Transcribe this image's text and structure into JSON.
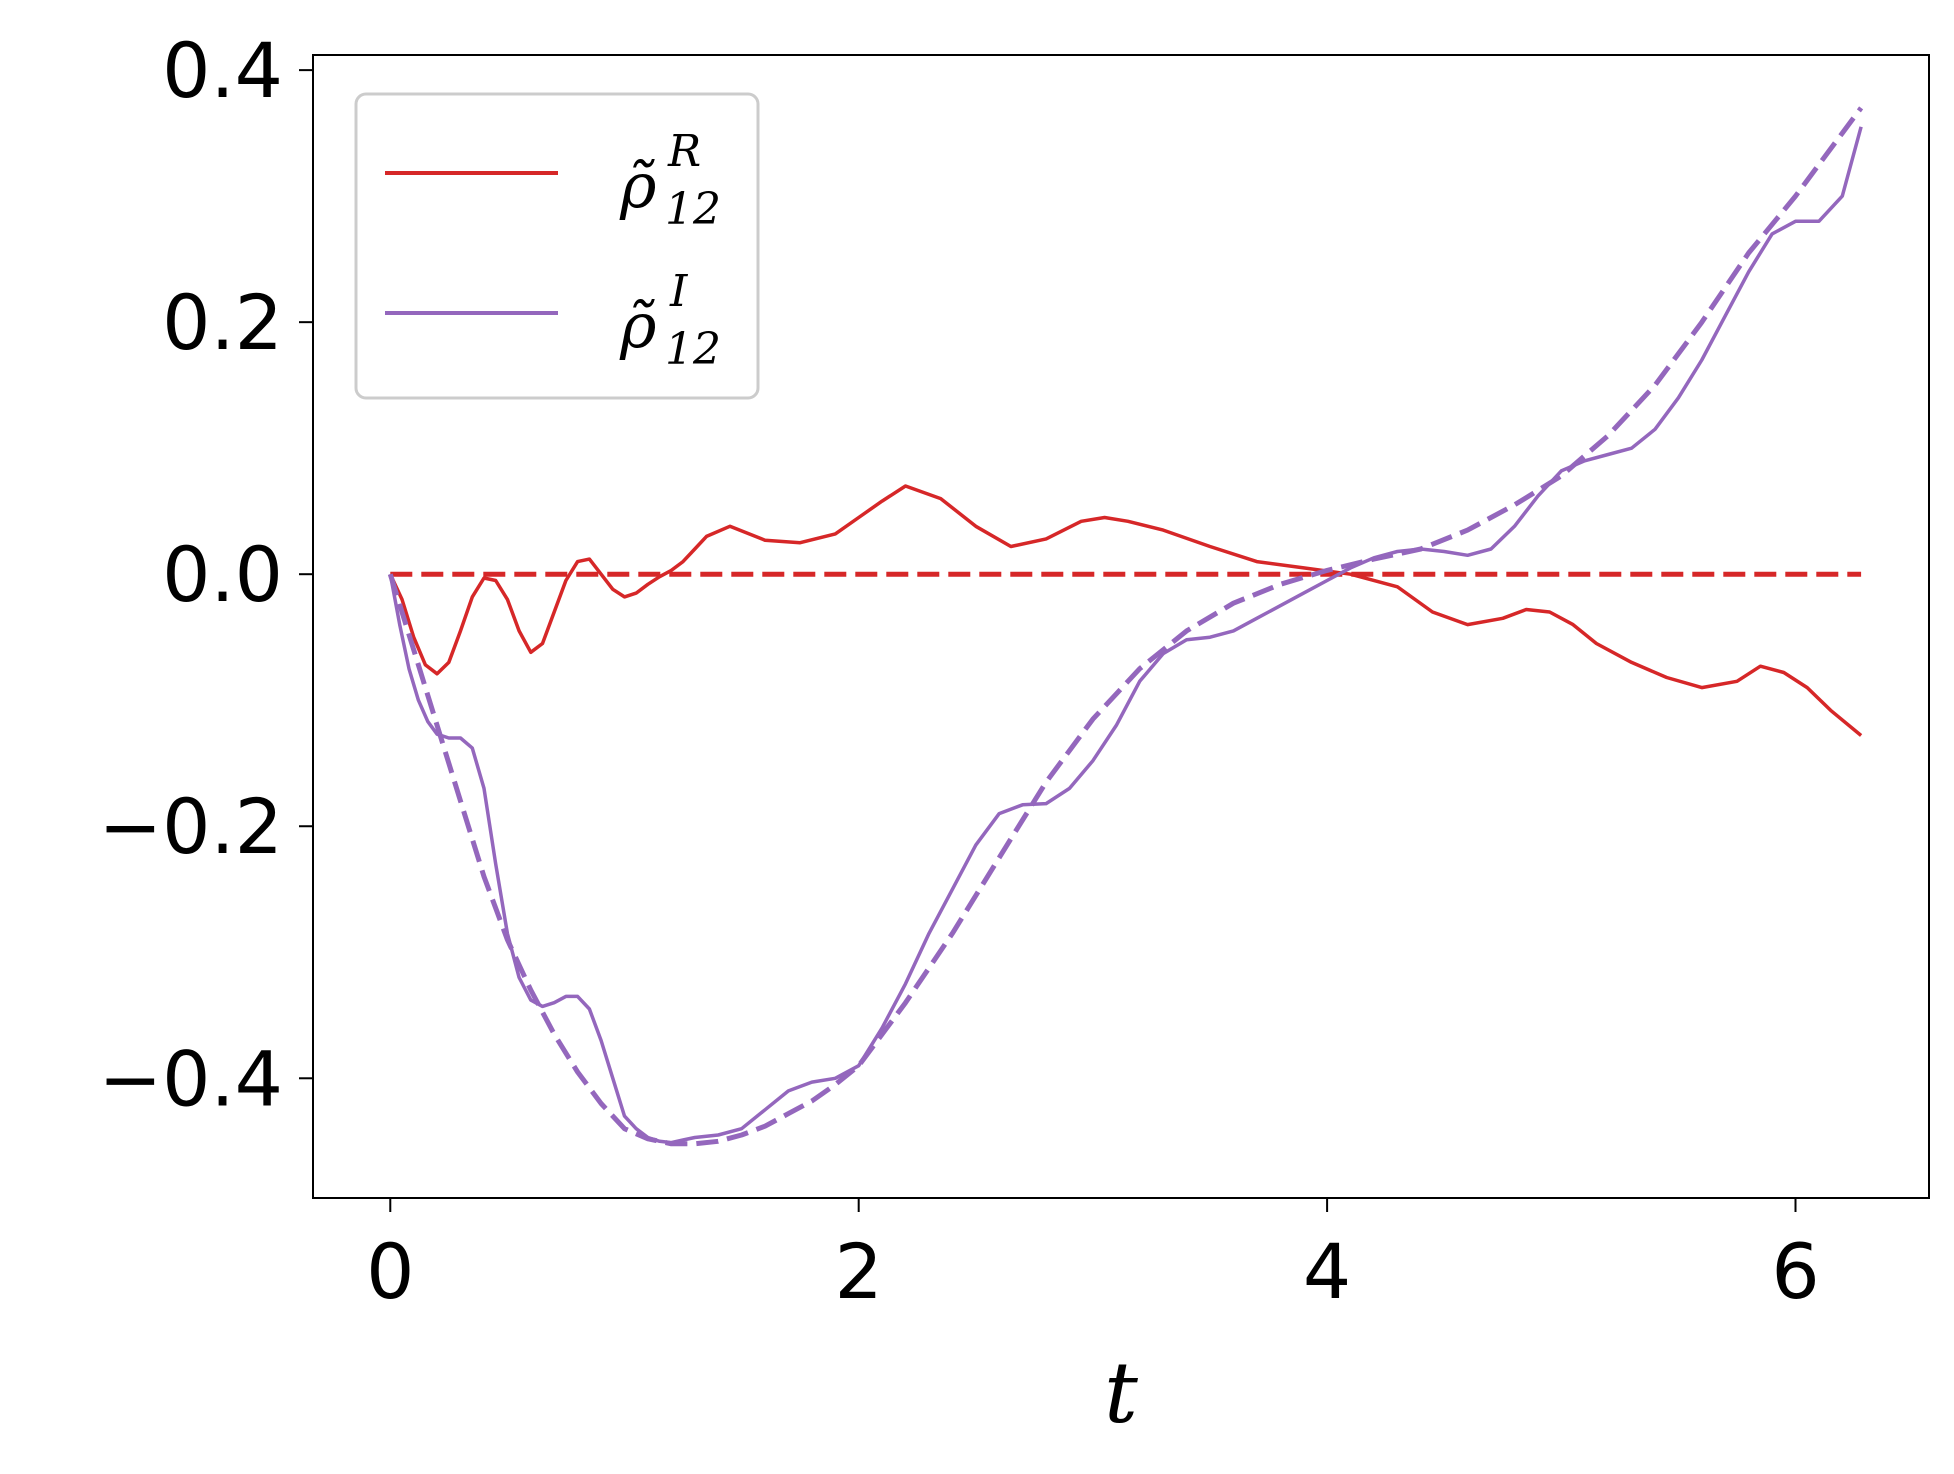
{
  "chart_data": {
    "type": "line",
    "xlabel": "t",
    "ylabel": "",
    "xlim": [
      -0.33,
      6.57
    ],
    "ylim": [
      -0.495,
      0.412
    ],
    "xticks": [
      0,
      2,
      4,
      6
    ],
    "yticks": [
      -0.4,
      -0.2,
      0.0,
      0.2,
      0.4
    ],
    "xtick_labels": [
      "0",
      "2",
      "4",
      "6"
    ],
    "ytick_labels": [
      "−0.4",
      "−0.2",
      "0.0",
      "0.2",
      "0.4"
    ],
    "grid": false,
    "legend_position": "top-left",
    "legend": [
      {
        "symbol": "ρ̃",
        "sub": "12",
        "sup": "R",
        "color": "#d62728"
      },
      {
        "symbol": "ρ̃",
        "sub": "12",
        "sup": "I",
        "color": "#9467bd"
      }
    ],
    "series": [
      {
        "color": "#d62728",
        "style": "solid",
        "x": [
          0,
          0.05,
          0.1,
          0.15,
          0.2,
          0.25,
          0.3,
          0.35,
          0.4,
          0.45,
          0.5,
          0.55,
          0.6,
          0.65,
          0.7,
          0.75,
          0.8,
          0.85,
          0.9,
          0.95,
          1.0,
          1.05,
          1.1,
          1.15,
          1.2,
          1.25,
          1.3,
          1.35,
          1.45,
          1.6,
          1.75,
          1.9,
          2.0,
          2.1,
          2.2,
          2.35,
          2.5,
          2.65,
          2.8,
          2.95,
          3.05,
          3.15,
          3.3,
          3.5,
          3.7,
          3.9,
          4.1,
          4.3,
          4.45,
          4.6,
          4.75,
          4.85,
          4.95,
          5.05,
          5.15,
          5.3,
          5.45,
          5.6,
          5.75,
          5.85,
          5.95,
          6.05,
          6.15,
          6.28
        ],
        "y": [
          0.0,
          -0.02,
          -0.05,
          -0.072,
          -0.079,
          -0.07,
          -0.045,
          -0.018,
          -0.003,
          -0.005,
          -0.02,
          -0.045,
          -0.062,
          -0.055,
          -0.03,
          -0.005,
          0.01,
          0.012,
          0.0,
          -0.012,
          -0.018,
          -0.015,
          -0.008,
          -0.002,
          0.003,
          0.01,
          0.02,
          0.03,
          0.038,
          0.027,
          0.025,
          0.032,
          0.045,
          0.058,
          0.07,
          0.06,
          0.038,
          0.022,
          0.028,
          0.042,
          0.045,
          0.042,
          0.035,
          0.022,
          0.01,
          0.005,
          0.0,
          -0.01,
          -0.03,
          -0.04,
          -0.035,
          -0.028,
          -0.03,
          -0.04,
          -0.055,
          -0.07,
          -0.082,
          -0.09,
          -0.085,
          -0.073,
          -0.078,
          -0.09,
          -0.108,
          -0.128
        ]
      },
      {
        "color": "#d62728",
        "style": "dashed",
        "x": [
          0,
          6.28
        ],
        "y": [
          0.0,
          0.0
        ]
      },
      {
        "color": "#9467bd",
        "style": "solid",
        "x": [
          0,
          0.04,
          0.08,
          0.12,
          0.16,
          0.2,
          0.25,
          0.3,
          0.35,
          0.4,
          0.45,
          0.5,
          0.55,
          0.6,
          0.65,
          0.7,
          0.75,
          0.8,
          0.85,
          0.9,
          0.95,
          1.0,
          1.05,
          1.1,
          1.15,
          1.2,
          1.25,
          1.3,
          1.35,
          1.4,
          1.5,
          1.6,
          1.7,
          1.8,
          1.9,
          2.0,
          2.1,
          2.2,
          2.3,
          2.4,
          2.5,
          2.6,
          2.7,
          2.8,
          2.9,
          3.0,
          3.1,
          3.2,
          3.3,
          3.4,
          3.5,
          3.6,
          3.7,
          3.8,
          3.9,
          4.0,
          4.1,
          4.2,
          4.3,
          4.4,
          4.5,
          4.6,
          4.7,
          4.8,
          4.9,
          5.0,
          5.1,
          5.2,
          5.3,
          5.4,
          5.5,
          5.6,
          5.7,
          5.8,
          5.9,
          6.0,
          6.1,
          6.2,
          6.28
        ],
        "y": [
          0.0,
          -0.04,
          -0.075,
          -0.1,
          -0.117,
          -0.127,
          -0.13,
          -0.13,
          -0.138,
          -0.17,
          -0.23,
          -0.285,
          -0.32,
          -0.338,
          -0.343,
          -0.34,
          -0.335,
          -0.335,
          -0.345,
          -0.37,
          -0.4,
          -0.43,
          -0.44,
          -0.447,
          -0.45,
          -0.451,
          -0.449,
          -0.447,
          -0.446,
          -0.445,
          -0.44,
          -0.425,
          -0.41,
          -0.403,
          -0.4,
          -0.39,
          -0.36,
          -0.325,
          -0.285,
          -0.25,
          -0.215,
          -0.19,
          -0.183,
          -0.182,
          -0.17,
          -0.148,
          -0.12,
          -0.085,
          -0.063,
          -0.052,
          -0.05,
          -0.045,
          -0.035,
          -0.025,
          -0.015,
          -0.005,
          0.005,
          0.013,
          0.018,
          0.02,
          0.018,
          0.015,
          0.02,
          0.038,
          0.062,
          0.082,
          0.09,
          0.095,
          0.1,
          0.115,
          0.14,
          0.17,
          0.205,
          0.24,
          0.27,
          0.28,
          0.28,
          0.3,
          0.355
        ]
      },
      {
        "color": "#9467bd",
        "style": "dashed",
        "x": [
          0,
          0.1,
          0.2,
          0.3,
          0.4,
          0.5,
          0.6,
          0.7,
          0.8,
          0.9,
          1.0,
          1.1,
          1.2,
          1.3,
          1.4,
          1.5,
          1.6,
          1.7,
          1.8,
          1.9,
          2.0,
          2.2,
          2.4,
          2.6,
          2.8,
          3.0,
          3.2,
          3.4,
          3.6,
          3.8,
          4.0,
          4.2,
          4.4,
          4.6,
          4.8,
          5.0,
          5.2,
          5.4,
          5.6,
          5.8,
          6.0,
          6.1,
          6.2,
          6.28
        ],
        "y": [
          0.0,
          -0.06,
          -0.12,
          -0.18,
          -0.24,
          -0.29,
          -0.33,
          -0.365,
          -0.395,
          -0.42,
          -0.44,
          -0.448,
          -0.452,
          -0.452,
          -0.45,
          -0.445,
          -0.438,
          -0.428,
          -0.418,
          -0.405,
          -0.39,
          -0.34,
          -0.285,
          -0.225,
          -0.165,
          -0.115,
          -0.075,
          -0.045,
          -0.023,
          -0.008,
          0.003,
          0.012,
          0.02,
          0.035,
          0.055,
          0.078,
          0.11,
          0.15,
          0.2,
          0.255,
          0.3,
          0.325,
          0.35,
          0.37
        ]
      }
    ]
  }
}
